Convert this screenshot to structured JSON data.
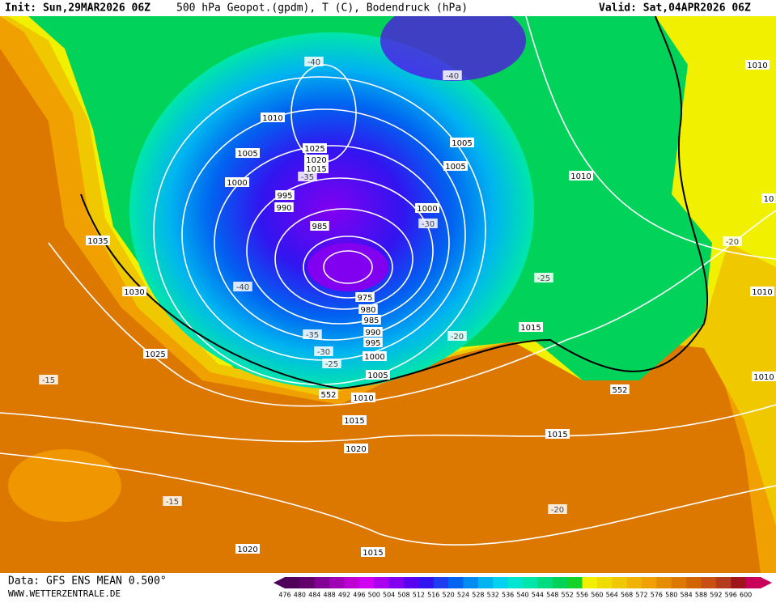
{
  "header": {
    "init": "Init: Sun,29MAR2026 06Z",
    "title": "500 hPa Geopot.(gpdm), T (C), Bodendruck (hPa)",
    "valid": "Valid: Sat,04APR2026 06Z"
  },
  "footer": {
    "data_source": "Data: GFS ENS MEAN 0.500°",
    "website": "WWW.WETTERZENTRALE.DE"
  },
  "colorbar": {
    "values": [
      476,
      480,
      484,
      488,
      492,
      496,
      500,
      504,
      508,
      512,
      516,
      520,
      524,
      528,
      532,
      536,
      540,
      544,
      548,
      552,
      556,
      560,
      564,
      568,
      572,
      576,
      580,
      584,
      588,
      592,
      596,
      600
    ],
    "colors": [
      "#50005a",
      "#64006e",
      "#820096",
      "#a000b4",
      "#be00d2",
      "#d200f0",
      "#aa00f0",
      "#8200f0",
      "#5a00f0",
      "#3214f0",
      "#1e3cf0",
      "#0064f0",
      "#008cf0",
      "#00b4f0",
      "#00d2f0",
      "#00e6d2",
      "#00e6aa",
      "#00dc82",
      "#00d25a",
      "#14d228",
      "#f0f000",
      "#f0dc00",
      "#f0c800",
      "#f0b400",
      "#f0a000",
      "#e68c00",
      "#dc7800",
      "#d26400",
      "#c85014",
      "#b43c1e",
      "#a0141e",
      "#c8005a"
    ]
  },
  "isobar_labels": [
    "1010",
    "1005",
    "1000",
    "995",
    "990",
    "985",
    "1025",
    "1020",
    "1015",
    "1000",
    "1005",
    "1005",
    "1010",
    "1010",
    "1035",
    "1030",
    "975",
    "980",
    "985",
    "990",
    "995",
    "1000",
    "1005",
    "1010",
    "1015",
    "1020",
    "1025",
    "1015",
    "1015",
    "1020",
    "1015",
    "10",
    "1010",
    "1010"
  ],
  "temperature_labels": [
    "-40",
    "-40",
    "-35",
    "-30",
    "-40",
    "-35",
    "-30",
    "-25",
    "-20",
    "-25",
    "-20",
    "-15",
    "-15",
    "-20"
  ],
  "height_labels": [
    "552",
    "552"
  ]
}
